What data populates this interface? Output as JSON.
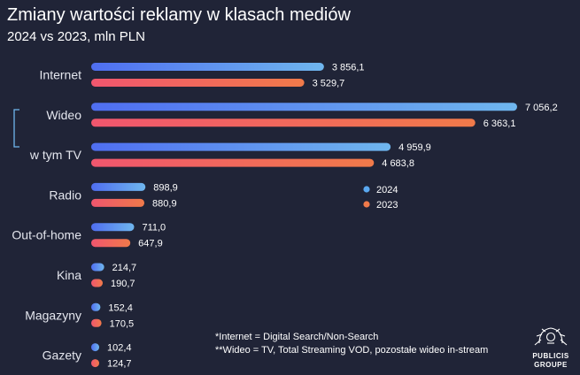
{
  "chart_data": {
    "type": "bar",
    "orientation": "horizontal",
    "title": "Zmiany wartości reklamy w klasach mediów",
    "subtitle": "2024 vs 2023, mln PLN",
    "categories": [
      "Internet",
      "Wideo",
      "w tym TV",
      "Radio",
      "Out-of-home",
      "Kina",
      "Magazyny",
      "Gazety"
    ],
    "series": [
      {
        "name": "2024",
        "color": "#4f6ef0",
        "color_end": "#6fb6ee",
        "values": [
          3856.1,
          7056.2,
          4959.9,
          898.9,
          711.0,
          214.7,
          152.4,
          102.4
        ],
        "labels": [
          "3 856,1",
          "7 056,2",
          "4 959,9",
          "898,9",
          "711,0",
          "214,7",
          "152,4",
          "102,4"
        ]
      },
      {
        "name": "2023",
        "color": "#f0566e",
        "color_end": "#f07a4a",
        "values": [
          3529.7,
          6363.1,
          4683.8,
          880.9,
          647.9,
          190.7,
          170.5,
          124.7
        ],
        "labels": [
          "3 529,7",
          "6 363,1",
          "4 683,8",
          "880,9",
          "647,9",
          "190,7",
          "170,5",
          "124,7"
        ]
      }
    ],
    "xlim": [
      0,
      7056.2
    ],
    "legend": [
      {
        "label": "2024",
        "color": "#5aa8f0"
      },
      {
        "label": "2023",
        "color": "#f07a4a"
      }
    ],
    "legend_position": "right",
    "notes": [
      "*Internet = Digital Search/Non-Search",
      "**Wideo = TV, Total Streaming VOD, pozostałe wideo in-stream"
    ]
  },
  "brand": {
    "line1": "PUBLICIS",
    "line2": "GROUPE"
  }
}
